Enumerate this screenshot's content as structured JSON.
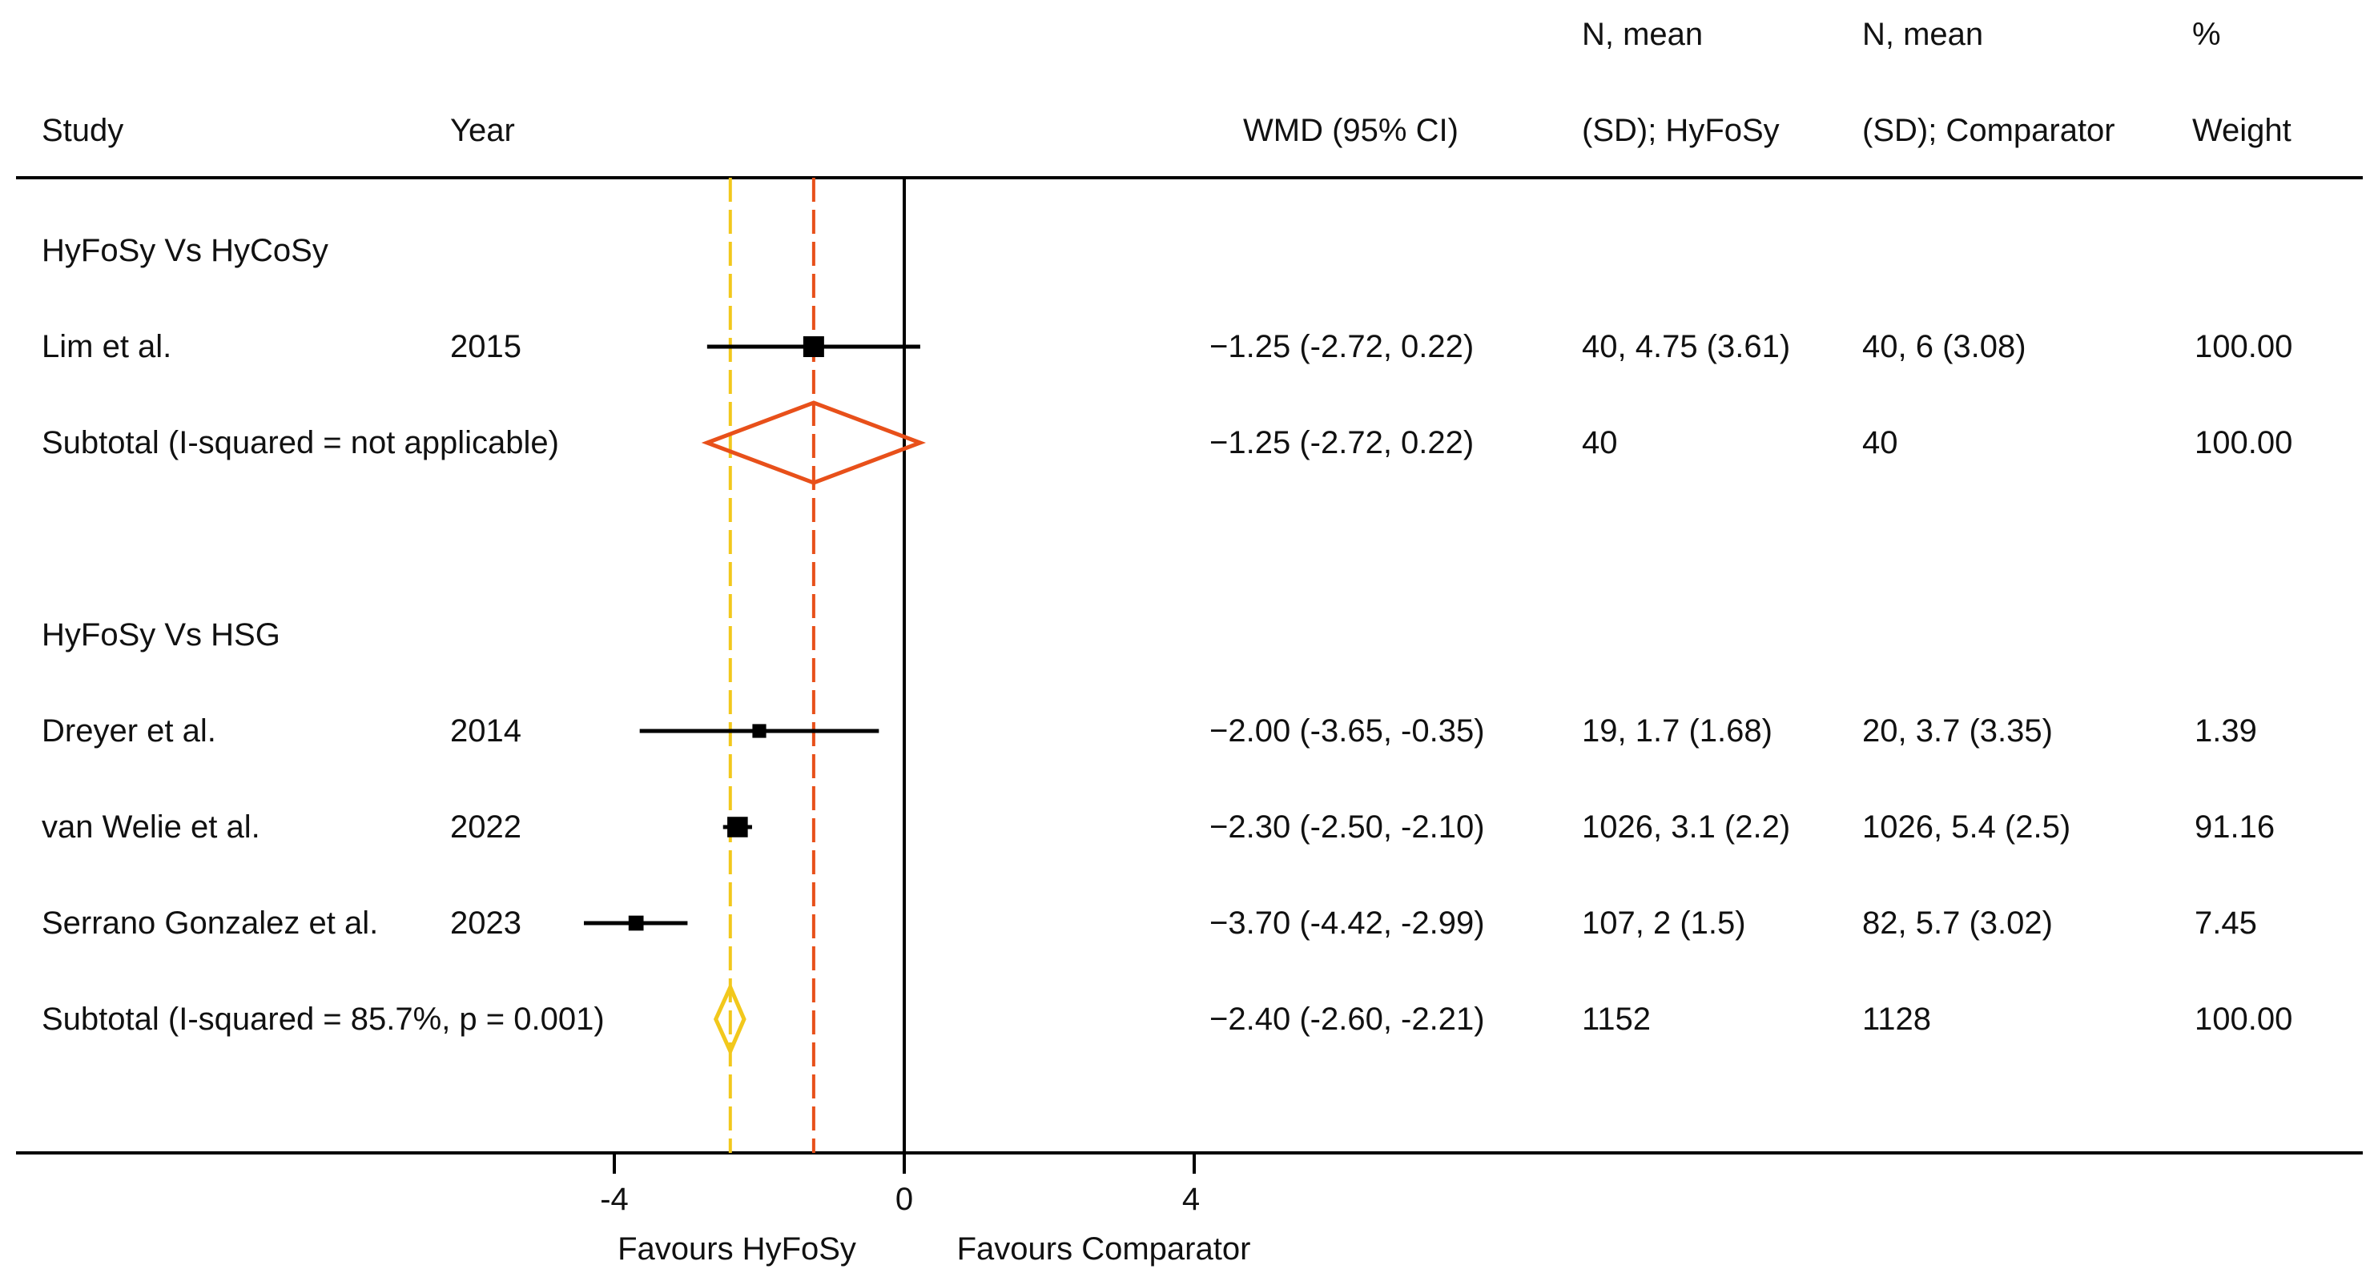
{
  "chart_data": {
    "type": "forest",
    "effect_measure": "WMD (95% CI)",
    "columns": {
      "study": "Study",
      "year": "Year",
      "effect": "WMD (95% CI)",
      "group1_line1": "N, mean",
      "group1_line2": "(SD); HyFoSy",
      "group2_line1": "N, mean",
      "group2_line2": "(SD); Comparator",
      "weight_line1": "%",
      "weight_line2": "Weight"
    },
    "x_ticks": [
      -4,
      0,
      4
    ],
    "x_tick_labels": [
      "-4",
      "0",
      "4"
    ],
    "xlim": [
      -10,
      10
    ],
    "favours_left": "Favours HyFoSy",
    "favours_right": "Favours Comparator",
    "reference_lines": [
      {
        "name": "null",
        "value": 0,
        "color": "#000000",
        "style": "solid"
      },
      {
        "name": "overall-hycosy",
        "value": -1.25,
        "color": "#e8501a",
        "style": "dashed"
      },
      {
        "name": "overall-hsg",
        "value": -2.4,
        "color": "#f2c81c",
        "style": "dashed"
      }
    ],
    "rows": [
      {
        "kind": "header",
        "label": "HyFoSy Vs HyCoSy"
      },
      {
        "kind": "study",
        "label": "Lim et al.",
        "year": "2015",
        "effect": -1.25,
        "ci_low": -2.72,
        "ci_high": 0.22,
        "effect_text": "−1.25 (-2.72, 0.22)",
        "group1": "40, 4.75 (3.61)",
        "group2": "40, 6 (3.08)",
        "weight": "100.00",
        "weight_value": 100.0
      },
      {
        "kind": "subtotal",
        "label": "Subtotal (I-squared = not applicable)",
        "year": "",
        "effect": -1.25,
        "ci_low": -2.72,
        "ci_high": 0.22,
        "effect_text": "−1.25 (-2.72, 0.22)",
        "group1": "40",
        "group2": "40",
        "weight": "100.00",
        "color": "#e8501a"
      },
      {
        "kind": "spacer"
      },
      {
        "kind": "header",
        "label": "HyFoSy Vs HSG"
      },
      {
        "kind": "study",
        "label": "Dreyer et al.",
        "year": "2014",
        "effect": -2.0,
        "ci_low": -3.65,
        "ci_high": -0.35,
        "effect_text": "−2.00 (-3.65, -0.35)",
        "group1": "19, 1.7 (1.68)",
        "group2": "20, 3.7 (3.35)",
        "weight": "1.39",
        "weight_value": 1.39
      },
      {
        "kind": "study",
        "label": "van Welie et al.",
        "year": "2022",
        "effect": -2.3,
        "ci_low": -2.5,
        "ci_high": -2.1,
        "effect_text": "−2.30 (-2.50, -2.10)",
        "group1": "1026, 3.1 (2.2)",
        "group2": "1026, 5.4 (2.5)",
        "weight": "91.16",
        "weight_value": 91.16
      },
      {
        "kind": "study",
        "label": "Serrano Gonzalez et al.",
        "year": "2023",
        "effect": -3.7,
        "ci_low": -4.42,
        "ci_high": -2.99,
        "effect_text": "−3.70 (-4.42, -2.99)",
        "group1": "107, 2 (1.5)",
        "group2": "82, 5.7 (3.02)",
        "weight": "7.45",
        "weight_value": 7.45
      },
      {
        "kind": "subtotal",
        "label": "Subtotal  (I-squared = 85.7%, p = 0.001)",
        "year": "",
        "effect": -2.4,
        "ci_low": -2.6,
        "ci_high": -2.21,
        "effect_text": "−2.40 (-2.60, -2.21)",
        "group1": "1152",
        "group2": "1128",
        "weight": "100.00",
        "color": "#f2c81c"
      }
    ]
  }
}
